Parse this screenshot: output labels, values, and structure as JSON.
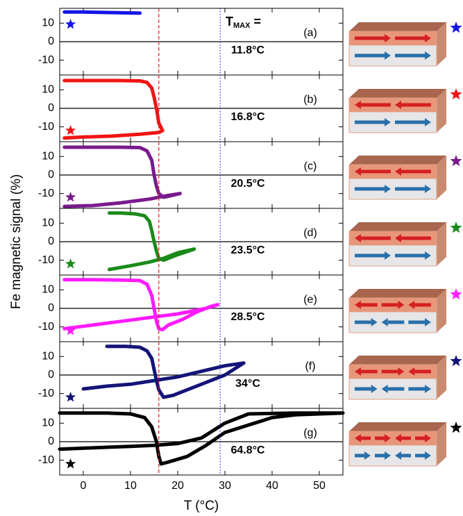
{
  "figure": {
    "ylabel": "Fe magnetic signal (%)",
    "xlabel": "T (°C)",
    "xlim": [
      -5,
      55
    ],
    "xticks": [
      0,
      10,
      20,
      30,
      40,
      50
    ],
    "tmax_heading": {
      "symbol": "T",
      "subscript": "MAX",
      "suffix": "="
    },
    "vlines": [
      {
        "value": 16,
        "color": "#e02020",
        "style": "dashed"
      },
      {
        "value": 29,
        "color": "#2a2ae0",
        "style": "dotted"
      }
    ]
  },
  "chart_data": [
    {
      "type": "line",
      "label": "(a)",
      "tmax": "11.8°C",
      "color": "#1414e6",
      "ylim": [
        -18,
        18
      ],
      "yticks": [
        -10,
        0,
        10
      ],
      "x": [
        -4,
        0,
        4,
        8,
        12
      ],
      "values": [
        16,
        16,
        15.8,
        15.6,
        15.4
      ]
    },
    {
      "type": "line",
      "label": "(b)",
      "tmax": "16.8°C",
      "color": "#f01414",
      "ylim": [
        -18,
        18
      ],
      "yticks": [
        -10,
        0,
        10
      ],
      "x": [
        -4,
        2,
        8,
        12,
        13.5,
        14.5,
        15,
        15.5,
        16,
        16.8,
        16,
        12,
        6,
        0,
        -4
      ],
      "values": [
        15,
        15,
        15,
        14.8,
        14,
        11,
        6,
        0,
        -8,
        -12,
        -13,
        -14,
        -15,
        -15.5,
        -16
      ]
    },
    {
      "type": "line",
      "label": "(c)",
      "tmax": "20.5°C",
      "color": "#7a1a8c",
      "ylim": [
        -18,
        18
      ],
      "yticks": [
        -10,
        0,
        10
      ],
      "x": [
        -4,
        2,
        8,
        12,
        13.5,
        14.5,
        15,
        15.5,
        16,
        17,
        18,
        20.5,
        18,
        14,
        8,
        2,
        -4
      ],
      "values": [
        15,
        15,
        15,
        14.8,
        13,
        8,
        0,
        -6,
        -10,
        -12,
        -11.5,
        -10,
        -11,
        -13,
        -15,
        -16.5,
        -17
      ]
    },
    {
      "type": "line",
      "label": "(d)",
      "tmax": "23.5°C",
      "color": "#1a8a1a",
      "ylim": [
        -18,
        18
      ],
      "yticks": [
        -10,
        0,
        10
      ],
      "x": [
        5.5,
        8,
        11,
        13,
        14,
        14.5,
        15,
        15.5,
        16,
        17,
        18,
        20,
        23.5,
        20,
        17,
        14,
        10,
        5.5
      ],
      "values": [
        15.5,
        15.5,
        15,
        14,
        11,
        6,
        0,
        -5,
        -9,
        -10,
        -9,
        -7,
        -4,
        -6,
        -9,
        -11,
        -13,
        -15
      ]
    },
    {
      "type": "line",
      "label": "(e)",
      "tmax": "28.5°C",
      "color": "#ff1aff",
      "ylim": [
        -18,
        18
      ],
      "yticks": [
        -10,
        0,
        10
      ],
      "x": [
        -4,
        2,
        8,
        12,
        13.5,
        14.5,
        15,
        15.5,
        16,
        16.8,
        18,
        21,
        24,
        27,
        28.5,
        26,
        20,
        14,
        8,
        2,
        -4
      ],
      "values": [
        15.5,
        15.5,
        15.3,
        15,
        13,
        7,
        0,
        -7,
        -11,
        -11.5,
        -9,
        -6,
        -2,
        1,
        2,
        0,
        -3,
        -5,
        -7,
        -9,
        -11
      ]
    },
    {
      "type": "line",
      "label": "(f)",
      "tmax": "34°C",
      "color": "#141478",
      "ylim": [
        -18,
        18
      ],
      "yticks": [
        -10,
        0,
        10
      ],
      "x": [
        5,
        9,
        12,
        13.5,
        14.5,
        15,
        15.5,
        16,
        17,
        19,
        22,
        26,
        30,
        34,
        30,
        25,
        20,
        15,
        10,
        5,
        0
      ],
      "values": [
        15.5,
        15.5,
        15,
        13,
        9,
        3,
        -3,
        -8,
        -12,
        -11,
        -8,
        -4,
        0,
        6.5,
        5,
        2,
        -1,
        -3,
        -5,
        -6,
        -7.5
      ]
    },
    {
      "type": "line",
      "label": "(g)",
      "tmax": "64.8°C",
      "color": "#000000",
      "ylim": [
        -18,
        18
      ],
      "yticks": [
        -10,
        0,
        10
      ],
      "x": [
        -5,
        5,
        10,
        13,
        14.5,
        15.5,
        16,
        16.5,
        18,
        22,
        26,
        30,
        35,
        40,
        45,
        55,
        45,
        35,
        30,
        25,
        20,
        15,
        10,
        5,
        -5
      ],
      "values": [
        15.5,
        15.5,
        15,
        13,
        8,
        0,
        -8,
        -12,
        -11,
        -8,
        -2,
        5,
        9,
        13,
        14.5,
        15.5,
        15.5,
        15,
        10,
        2,
        -1,
        -2,
        -2.5,
        -3,
        -4
      ]
    }
  ]
}
